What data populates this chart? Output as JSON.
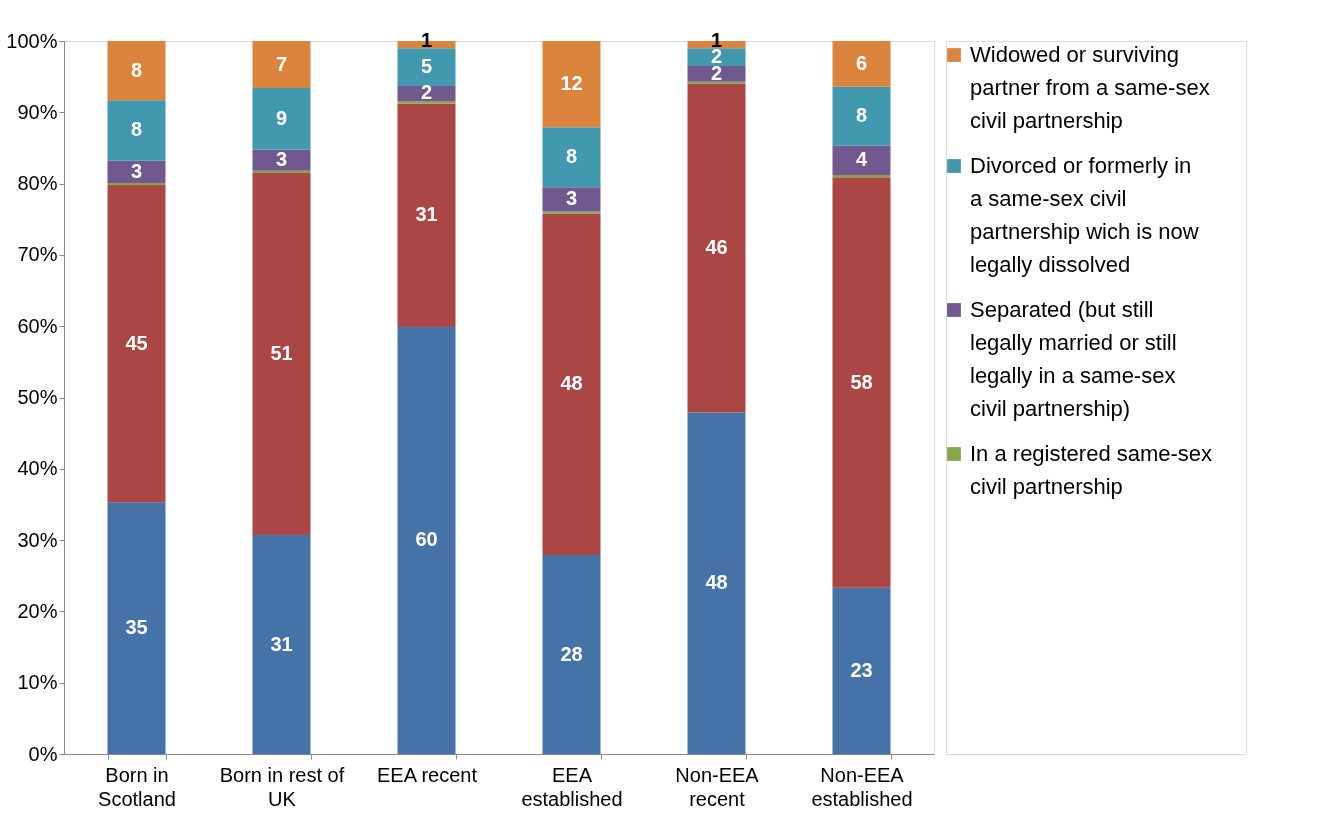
{
  "chart_data": {
    "type": "bar",
    "stacked": true,
    "legend": "right",
    "categories": [
      "Born in\nScotland",
      "Born in rest of\nUK",
      "EEA recent",
      "EEA\nestablished",
      "Non-EEA\nrecent",
      "Non-EEA\nestablished"
    ],
    "ylim": [
      0,
      100
    ],
    "yticks": [
      {
        "value": 0,
        "label": "0%"
      },
      {
        "value": 10,
        "label": "10%"
      },
      {
        "value": 20,
        "label": "20%"
      },
      {
        "value": 30,
        "label": "30%"
      },
      {
        "value": 40,
        "label": "40%"
      },
      {
        "value": 50,
        "label": "50%"
      },
      {
        "value": 60,
        "label": "60%"
      },
      {
        "value": 70,
        "label": "70%"
      },
      {
        "value": 80,
        "label": "80%"
      },
      {
        "value": 90,
        "label": "90%"
      },
      {
        "value": 100,
        "label": "100%"
      }
    ],
    "series": [
      {
        "color": "#4572a7",
        "values": [
          35.3,
          30.7,
          59.9,
          27.9,
          47.9,
          23.3
        ],
        "value_labels": [
          "35",
          "31",
          "60",
          "28",
          "48",
          "23"
        ]
      },
      {
        "color": "#aa4643",
        "values": [
          44.5,
          50.8,
          31.3,
          47.9,
          46.1,
          57.6
        ],
        "value_labels": [
          "45",
          "51",
          "31",
          "48",
          "46",
          "58"
        ]
      },
      {
        "name": "In a registered same-sex civil partnership",
        "color": "#89a54e",
        "values": [
          0.3,
          0.3,
          0.4,
          0.3,
          0.3,
          0.3
        ]
      },
      {
        "name": "Separated (but still legally married or still legally in a same-sex civil partnership)",
        "color": "#71588f",
        "values": [
          3.1,
          3.0,
          2.1,
          3.4,
          2.2,
          4.1
        ],
        "value_labels": [
          "3",
          "3",
          "2",
          "3",
          "2",
          "4"
        ]
      },
      {
        "name": "Divorced or formerly in a same-sex civil partnership wich is now legally dissolved",
        "color": "#4198af",
        "values": [
          8.5,
          8.6,
          5.3,
          8.4,
          2.5,
          8.3
        ],
        "value_labels": [
          "8",
          "9",
          "5",
          "8",
          "2",
          "8"
        ]
      },
      {
        "name": "Widowed or surviving partner from a same-sex civil partnership",
        "color": "#db843d",
        "values": [
          8.3,
          6.6,
          1.0,
          12.1,
          1.0,
          6.4
        ],
        "value_labels": [
          "8",
          "7",
          "1",
          "12",
          "1",
          "6"
        ]
      }
    ]
  }
}
